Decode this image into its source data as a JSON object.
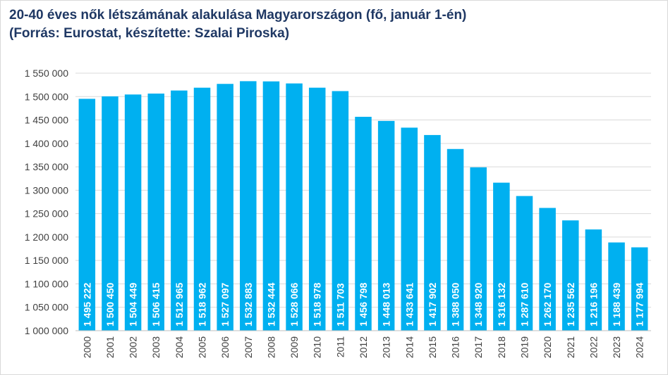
{
  "title_line1": "20-40 éves nők létszámának alakulása Magyarországon (fő, január 1-én)",
  "title_line2": "(Forrás: Eurostat, készítette: Szalai Piroska)",
  "chart_data": {
    "type": "bar",
    "categories": [
      "2000",
      "2001",
      "2002",
      "2003",
      "2004",
      "2005",
      "2006",
      "2007",
      "2008",
      "2009",
      "2010",
      "2011",
      "2012",
      "2013",
      "2014",
      "2015",
      "2016",
      "2017",
      "2018",
      "2019",
      "2020",
      "2021",
      "2022",
      "2023",
      "2024"
    ],
    "values": [
      1495222,
      1500450,
      1504449,
      1506415,
      1512965,
      1518962,
      1527097,
      1532883,
      1532444,
      1528066,
      1518978,
      1511703,
      1456798,
      1448013,
      1433641,
      1417902,
      1388050,
      1348920,
      1316132,
      1287610,
      1262170,
      1235562,
      1216196,
      1188439,
      1177994
    ],
    "value_labels": [
      "1 495 222",
      "1 500 450",
      "1 504 449",
      "1 506 415",
      "1 512 965",
      "1 518 962",
      "1 527 097",
      "1 532 883",
      "1 532 444",
      "1 528 066",
      "1 518 978",
      "1 511 703",
      "1 456 798",
      "1 448 013",
      "1 433 641",
      "1 417 902",
      "1 388 050",
      "1 348 920",
      "1 316 132",
      "1 287 610",
      "1 262 170",
      "1 235 562",
      "1 216 196",
      "1 188 439",
      "1 177 994"
    ],
    "ylim": [
      1000000,
      1550000
    ],
    "ytick_values": [
      1000000,
      1050000,
      1100000,
      1150000,
      1200000,
      1250000,
      1300000,
      1350000,
      1400000,
      1450000,
      1500000,
      1550000
    ],
    "ytick_labels": [
      "1 000 000",
      "1 050 000",
      "1 100 000",
      "1 150 000",
      "1 200 000",
      "1 250 000",
      "1 300 000",
      "1 350 000",
      "1 400 000",
      "1 450 000",
      "1 500 000",
      "1 550 000"
    ],
    "grid": true,
    "legend": "none",
    "bar_color": "#00b0f0",
    "label_color": "#ffffff",
    "grid_color": "#d9d9d9",
    "axis_text_color": "#404040",
    "title_color": "#1f3864"
  }
}
